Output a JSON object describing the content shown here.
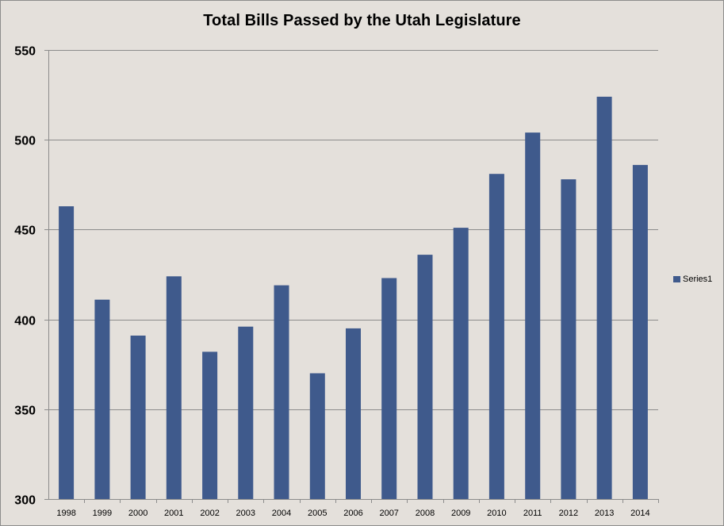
{
  "chart_data": {
    "type": "bar",
    "title": "Total Bills Passed by the Utah Legislature",
    "xlabel": "",
    "ylabel": "",
    "categories": [
      "1998",
      "1999",
      "2000",
      "2001",
      "2002",
      "2003",
      "2004",
      "2005",
      "2006",
      "2007",
      "2008",
      "2009",
      "2010",
      "2011",
      "2012",
      "2013",
      "2014"
    ],
    "series": [
      {
        "name": "Series1",
        "values": [
          463,
          411,
          391,
          424,
          382,
          396,
          419,
          370,
          395,
          423,
          436,
          451,
          481,
          504,
          478,
          524,
          486
        ]
      }
    ],
    "ylim": [
      300,
      550
    ],
    "yticks": [
      "300",
      "350",
      "400",
      "450",
      "500",
      "550"
    ],
    "grid": true,
    "legend": "right",
    "colors": {
      "bar": "#3f5a8c",
      "background": "#e4e0db",
      "grid": "#8c8c8c",
      "axis": "#8c8c8c"
    }
  }
}
